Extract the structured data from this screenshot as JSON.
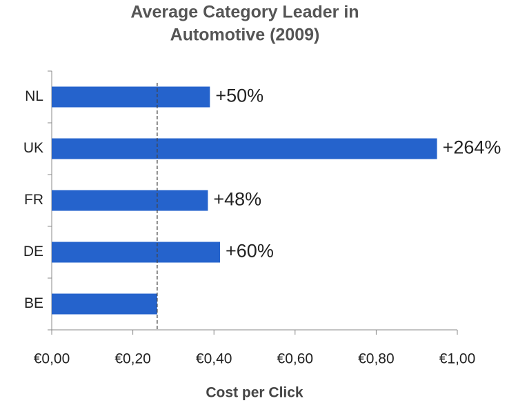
{
  "chart_data": {
    "type": "bar",
    "orientation": "horizontal",
    "title": [
      "Average Category Leader in",
      "Automotive (2009)"
    ],
    "x_label": "Cost per Click",
    "categories": [
      "NL",
      "UK",
      "FR",
      "DE",
      "BE"
    ],
    "values": [
      0.39,
      0.95,
      0.385,
      0.415,
      0.26
    ],
    "annotations": [
      "+50%",
      "+264%",
      "+48%",
      "+60%",
      null
    ],
    "reference_x": 0.26,
    "color": "#2563cc",
    "xlim": [
      0,
      1
    ],
    "xticks": [
      {
        "value": 0,
        "label": "€0,00"
      },
      {
        "value": 0.2,
        "label": "€0,20"
      },
      {
        "value": 0.4,
        "label": "€0,40"
      },
      {
        "value": 0.6,
        "label": "€0,60"
      },
      {
        "value": 0.8,
        "label": "€0,80"
      },
      {
        "value": 1,
        "label": "€1,00"
      }
    ],
    "grid": false
  }
}
